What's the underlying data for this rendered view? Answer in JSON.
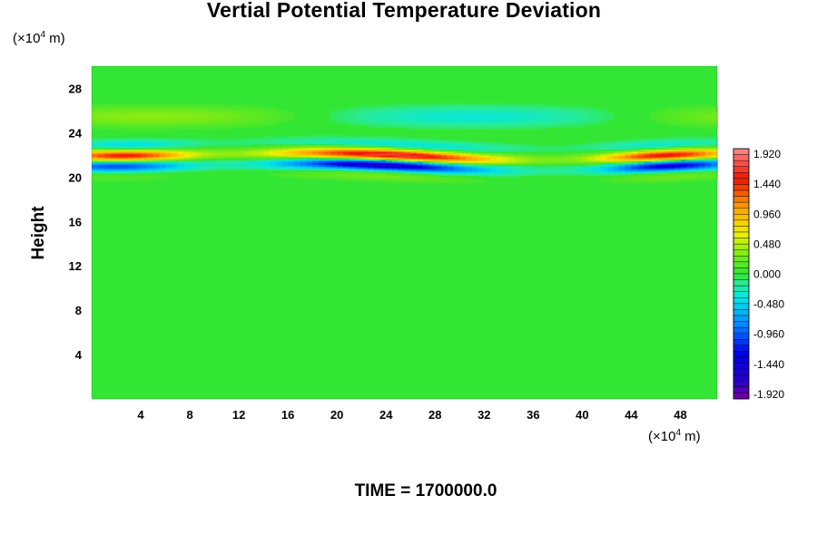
{
  "chart_data": {
    "type": "heatmap",
    "title": "Vertial Potential Temperature Deviation",
    "ylabel": "Height",
    "xlabel": "",
    "x_unit_prefix": "(×10",
    "x_unit_exp": "4",
    "x_unit_suffix": " m)",
    "y_unit_prefix": "(×10",
    "y_unit_exp": "4",
    "y_unit_suffix": " m)",
    "xlim": [
      0,
      51
    ],
    "ylim": [
      0,
      30
    ],
    "x_ticks": [
      "4",
      "8",
      "12",
      "16",
      "20",
      "24",
      "28",
      "32",
      "36",
      "40",
      "44",
      "48"
    ],
    "y_ticks": [
      "4",
      "8",
      "12",
      "16",
      "20",
      "24",
      "28"
    ],
    "colorbar": {
      "range": [
        -2.0,
        2.0
      ],
      "tick_labels": [
        "1.920",
        "1.440",
        "0.960",
        "0.480",
        "0.000",
        "-0.480",
        "-0.960",
        "-1.440",
        "-1.920"
      ]
    },
    "features": [
      {
        "description": "oscillating deviation band",
        "y_range": [
          20,
          24
        ],
        "peak_abs_value": 1.92
      },
      {
        "description": "near-zero field",
        "y_range": [
          0,
          19
        ],
        "value": 0.0
      }
    ]
  },
  "footer": {
    "time_label": "TIME = 1700000.0"
  }
}
